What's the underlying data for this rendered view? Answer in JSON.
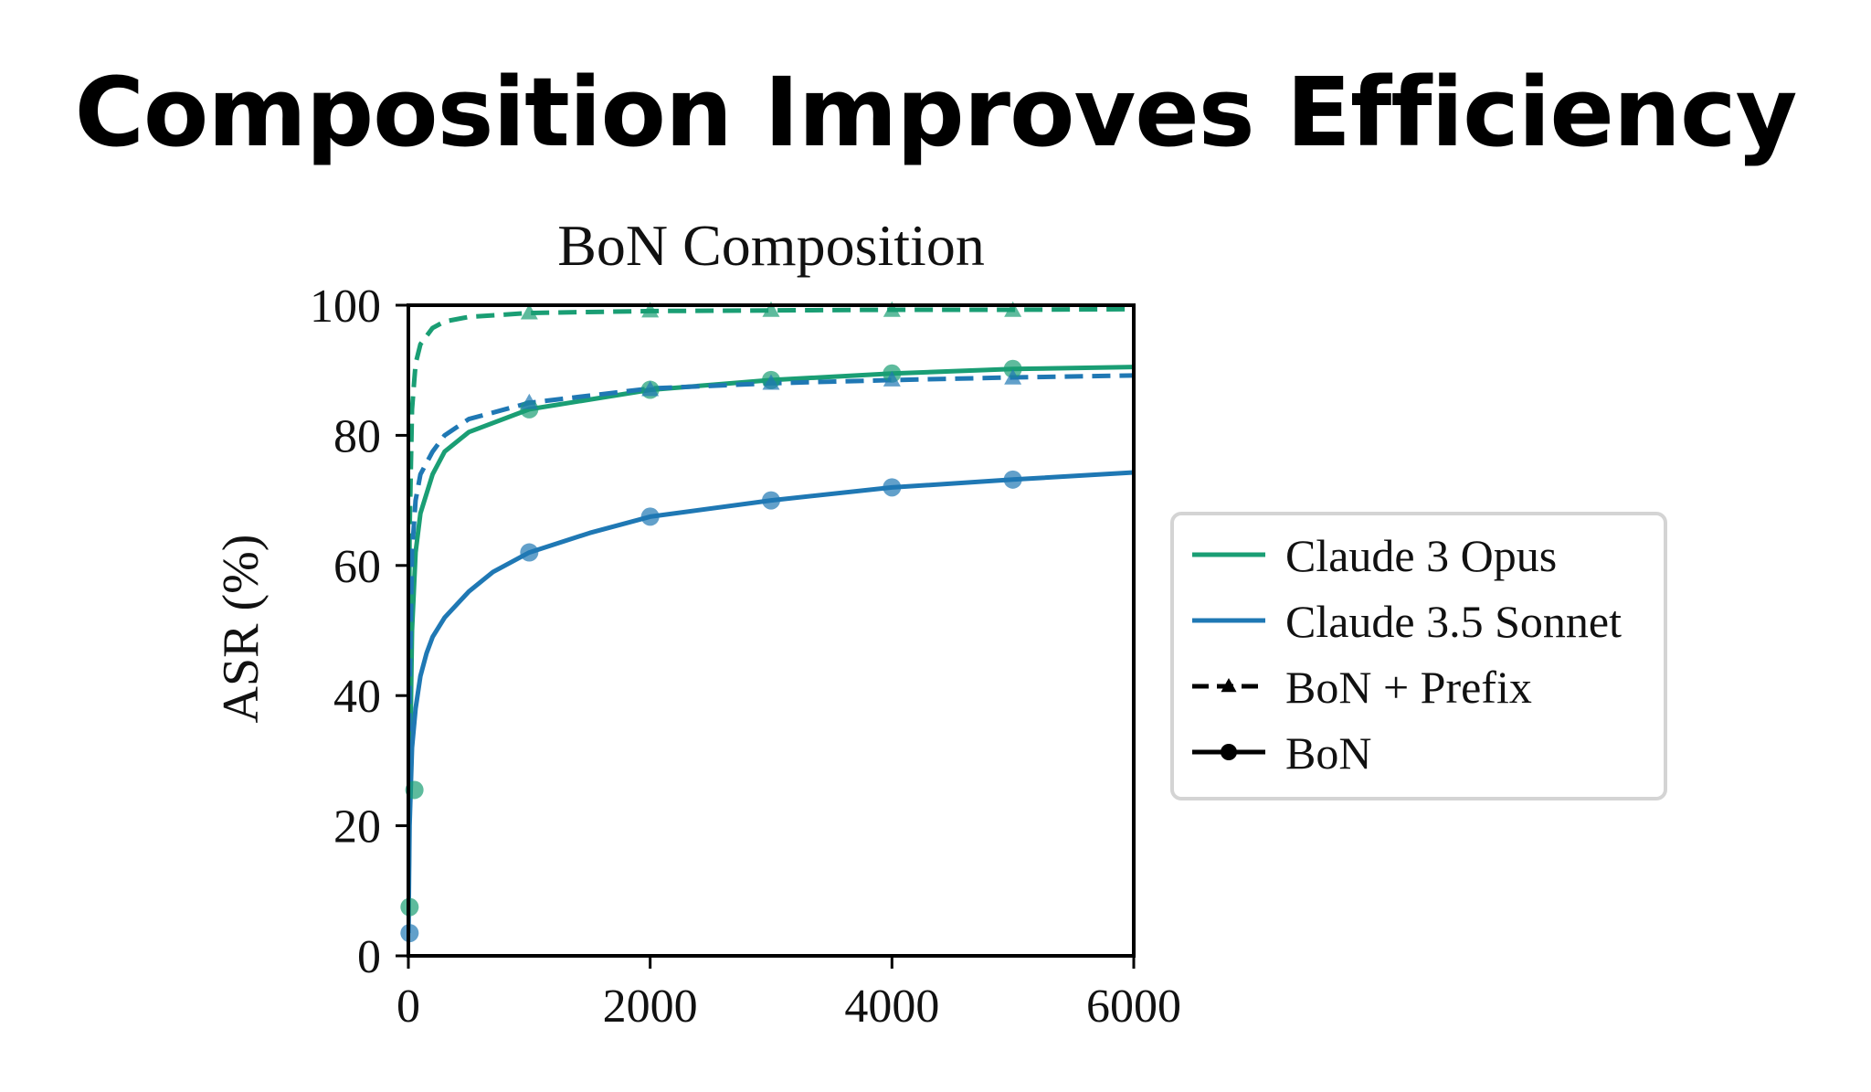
{
  "page": {
    "title": "Composition Improves Efficiency"
  },
  "chart_data": {
    "type": "line",
    "title": "BoN Composition",
    "xlabel": "",
    "ylabel": "ASR (%)",
    "xlim": [
      0,
      6000
    ],
    "ylim": [
      0,
      100
    ],
    "x_ticks": [
      "0",
      "2000",
      "4000",
      "6000"
    ],
    "y_ticks": [
      "0",
      "20",
      "40",
      "60",
      "80",
      "100"
    ],
    "grid": false,
    "legend_placement": "right",
    "colors": {
      "opus": "#1a9e74",
      "sonnet": "#1f78b4"
    },
    "legend": [
      {
        "label": "Claude 3 Opus",
        "kind": "color",
        "color": "#1a9e74"
      },
      {
        "label": "Claude 3.5 Sonnet",
        "kind": "color",
        "color": "#1f78b4"
      },
      {
        "label": "BoN + Prefix",
        "kind": "style",
        "dash": true,
        "marker": "triangle"
      },
      {
        "label": "BoN",
        "kind": "style",
        "dash": false,
        "marker": "circle"
      }
    ],
    "series": [
      {
        "model": "opus",
        "method": "prefix",
        "color": "#1a9e74",
        "dashed": true,
        "marker": "triangle",
        "curve": {
          "x": [
            1,
            10,
            30,
            60,
            100,
            200,
            300,
            500,
            1000,
            2000,
            3000,
            4000,
            5000,
            6000
          ],
          "y": [
            20,
            65,
            84,
            91,
            94,
            96.5,
            97.5,
            98.2,
            98.8,
            99.1,
            99.2,
            99.3,
            99.3,
            99.4
          ]
        },
        "points": {
          "x": [
            1000,
            2000,
            3000,
            4000,
            5000
          ],
          "y": [
            98.8,
            99.1,
            99.2,
            99.2,
            99.2
          ]
        }
      },
      {
        "model": "opus",
        "method": "bon",
        "color": "#1a9e74",
        "dashed": false,
        "marker": "circle",
        "curve": {
          "x": [
            1,
            10,
            30,
            60,
            100,
            200,
            300,
            500,
            1000,
            2000,
            3000,
            4000,
            5000,
            6000
          ],
          "y": [
            7,
            25,
            50,
            62,
            68,
            74,
            77.5,
            80.5,
            84,
            87,
            88.5,
            89.5,
            90.2,
            90.5
          ]
        },
        "points": {
          "x": [
            10,
            50,
            1000,
            2000,
            3000,
            4000,
            5000
          ],
          "y": [
            7.5,
            25.5,
            84,
            87,
            88.5,
            89.5,
            90.2
          ]
        }
      },
      {
        "model": "sonnet",
        "method": "prefix",
        "color": "#1f78b4",
        "dashed": true,
        "marker": "triangle",
        "curve": {
          "x": [
            1,
            10,
            30,
            60,
            100,
            200,
            300,
            500,
            1000,
            2000,
            3000,
            4000,
            5000,
            6000
          ],
          "y": [
            5,
            40,
            62,
            70,
            74,
            77.5,
            80,
            82.5,
            85,
            87.2,
            88,
            88.5,
            88.9,
            89.2
          ]
        },
        "points": {
          "x": [
            1000,
            2000,
            3000,
            4000,
            5000
          ],
          "y": [
            85,
            87,
            88,
            88.5,
            88.8
          ]
        }
      },
      {
        "model": "sonnet",
        "method": "bon",
        "color": "#1f78b4",
        "dashed": false,
        "marker": "circle",
        "curve": {
          "x": [
            1,
            10,
            30,
            60,
            100,
            150,
            200,
            300,
            500,
            700,
            1000,
            1500,
            2000,
            3000,
            4000,
            5000,
            6000
          ],
          "y": [
            3.5,
            20,
            32,
            38,
            43,
            46.5,
            49,
            52,
            56,
            59,
            62,
            65,
            67.5,
            70,
            72,
            73.2,
            74.3
          ]
        },
        "points": {
          "x": [
            10,
            1000,
            2000,
            3000,
            4000,
            5000
          ],
          "y": [
            3.5,
            62,
            67.5,
            70,
            72,
            73.2
          ]
        }
      }
    ]
  }
}
